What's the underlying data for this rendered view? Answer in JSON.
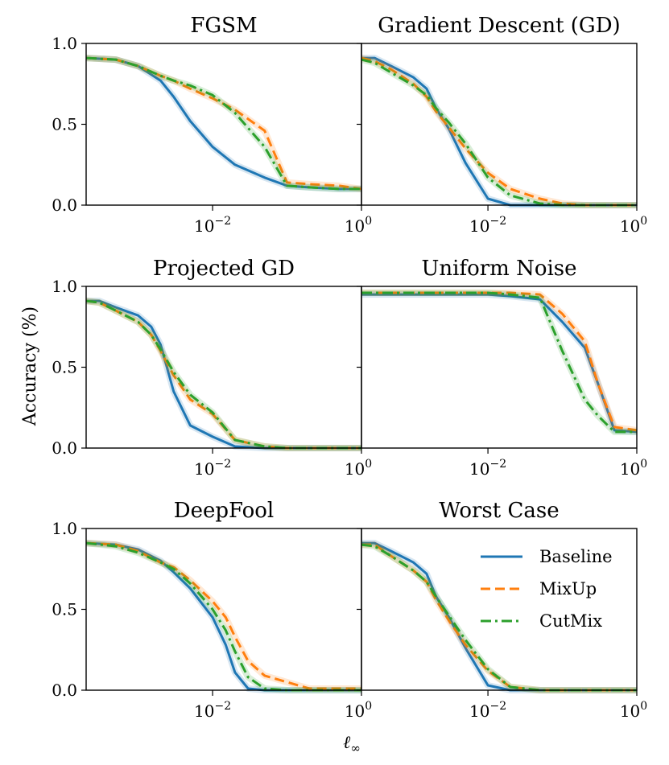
{
  "figure": {
    "ylabel": "Accuracy (%)",
    "xlabel_symbol": "ℓ",
    "xlabel_subscript": "∞"
  },
  "legend": {
    "placement": "bottom-right panel, top-right",
    "entries": [
      {
        "name": "Baseline",
        "color": "#1f77b4",
        "style": "solid"
      },
      {
        "name": "MixUp",
        "color": "#ff7f0e",
        "style": "dashed"
      },
      {
        "name": "CutMix",
        "color": "#2ca02c",
        "style": "dashdot"
      }
    ]
  },
  "axis": {
    "x_scale": "log",
    "x_tick_left": {
      "base": "10",
      "exp": "−2"
    },
    "x_tick_right": {
      "base": "10",
      "exp": "0"
    },
    "y_ticks": [
      "0.0",
      "0.5",
      "1.0"
    ],
    "ylim": [
      0,
      1
    ],
    "xlim": [
      0.0002,
      1
    ]
  },
  "chart_data": [
    {
      "type": "line",
      "title": "FGSM",
      "x": [
        0.0002,
        0.0005,
        0.001,
        0.002,
        0.003,
        0.005,
        0.01,
        0.02,
        0.05,
        0.1,
        0.2,
        0.5,
        1.0
      ],
      "series": [
        {
          "name": "Baseline",
          "values": [
            0.91,
            0.9,
            0.86,
            0.77,
            0.67,
            0.52,
            0.36,
            0.25,
            0.17,
            0.12,
            0.11,
            0.1,
            0.1
          ]
        },
        {
          "name": "MixUp",
          "values": [
            0.91,
            0.9,
            0.86,
            0.8,
            0.77,
            0.72,
            0.66,
            0.59,
            0.46,
            0.14,
            0.13,
            0.12,
            0.1
          ]
        },
        {
          "name": "CutMix",
          "values": [
            0.91,
            0.9,
            0.86,
            0.8,
            0.77,
            0.74,
            0.68,
            0.57,
            0.36,
            0.12,
            0.11,
            0.1,
            0.1
          ]
        }
      ]
    },
    {
      "type": "line",
      "title": "Gradient Descent (GD)",
      "x": [
        0.0002,
        0.0003,
        0.0005,
        0.001,
        0.0015,
        0.002,
        0.003,
        0.005,
        0.01,
        0.02,
        0.05,
        0.1,
        0.2,
        0.5,
        1.0
      ],
      "series": [
        {
          "name": "Baseline",
          "values": [
            0.91,
            0.91,
            0.86,
            0.79,
            0.72,
            0.6,
            0.47,
            0.26,
            0.04,
            0.0,
            0.0,
            0.0,
            0.0,
            0.0,
            0.0
          ]
        },
        {
          "name": "MixUp",
          "values": [
            0.91,
            0.89,
            0.84,
            0.75,
            0.67,
            0.58,
            0.48,
            0.35,
            0.2,
            0.1,
            0.04,
            0.01,
            0.0,
            0.0,
            0.0
          ]
        },
        {
          "name": "CutMix",
          "values": [
            0.9,
            0.88,
            0.82,
            0.74,
            0.68,
            0.6,
            0.51,
            0.38,
            0.17,
            0.06,
            0.01,
            0.0,
            0.0,
            0.0,
            0.0
          ]
        }
      ]
    },
    {
      "type": "line",
      "title": "Projected GD",
      "x": [
        0.0002,
        0.0003,
        0.0005,
        0.001,
        0.0015,
        0.002,
        0.003,
        0.005,
        0.01,
        0.02,
        0.05,
        0.1,
        0.2,
        0.5,
        1.0
      ],
      "series": [
        {
          "name": "Baseline",
          "values": [
            0.91,
            0.91,
            0.87,
            0.82,
            0.75,
            0.64,
            0.35,
            0.14,
            0.07,
            0.01,
            0.0,
            0.0,
            0.0,
            0.0,
            0.0
          ]
        },
        {
          "name": "MixUp",
          "values": [
            0.91,
            0.9,
            0.85,
            0.78,
            0.7,
            0.6,
            0.45,
            0.3,
            0.21,
            0.05,
            0.01,
            0.0,
            0.0,
            0.0,
            0.0
          ]
        },
        {
          "name": "CutMix",
          "values": [
            0.91,
            0.9,
            0.85,
            0.78,
            0.7,
            0.61,
            0.47,
            0.33,
            0.22,
            0.05,
            0.01,
            0.0,
            0.0,
            0.0,
            0.0
          ]
        }
      ]
    },
    {
      "type": "line",
      "title": "Uniform Noise",
      "x": [
        0.0002,
        0.0005,
        0.001,
        0.002,
        0.005,
        0.01,
        0.02,
        0.05,
        0.1,
        0.2,
        0.3,
        0.5,
        1.0
      ],
      "series": [
        {
          "name": "Baseline",
          "values": [
            0.95,
            0.95,
            0.95,
            0.95,
            0.95,
            0.95,
            0.94,
            0.92,
            0.78,
            0.62,
            0.4,
            0.11,
            0.1
          ]
        },
        {
          "name": "MixUp",
          "values": [
            0.96,
            0.96,
            0.96,
            0.96,
            0.96,
            0.96,
            0.96,
            0.95,
            0.83,
            0.66,
            0.4,
            0.13,
            0.11
          ]
        },
        {
          "name": "CutMix",
          "values": [
            0.96,
            0.96,
            0.96,
            0.96,
            0.96,
            0.96,
            0.95,
            0.93,
            0.6,
            0.3,
            0.2,
            0.1,
            0.1
          ]
        }
      ]
    },
    {
      "type": "line",
      "title": "DeepFool",
      "x": [
        0.0002,
        0.0005,
        0.001,
        0.002,
        0.003,
        0.005,
        0.01,
        0.015,
        0.02,
        0.03,
        0.05,
        0.1,
        0.2,
        0.5,
        1.0
      ],
      "series": [
        {
          "name": "Baseline",
          "values": [
            0.91,
            0.9,
            0.87,
            0.8,
            0.73,
            0.63,
            0.45,
            0.28,
            0.11,
            0.01,
            0.0,
            0.0,
            0.0,
            0.0,
            0.0
          ]
        },
        {
          "name": "MixUp",
          "values": [
            0.91,
            0.9,
            0.86,
            0.79,
            0.76,
            0.68,
            0.55,
            0.45,
            0.33,
            0.18,
            0.09,
            0.05,
            0.01,
            0.01,
            0.01
          ]
        },
        {
          "name": "CutMix",
          "values": [
            0.91,
            0.89,
            0.85,
            0.79,
            0.75,
            0.66,
            0.5,
            0.37,
            0.24,
            0.08,
            0.01,
            0.0,
            0.0,
            0.0,
            0.0
          ]
        }
      ]
    },
    {
      "type": "line",
      "title": "Worst Case",
      "x": [
        0.0002,
        0.0003,
        0.0005,
        0.001,
        0.0015,
        0.002,
        0.003,
        0.005,
        0.01,
        0.02,
        0.05,
        0.1,
        0.2,
        0.5,
        1.0
      ],
      "series": [
        {
          "name": "Baseline",
          "values": [
            0.91,
            0.91,
            0.86,
            0.79,
            0.72,
            0.58,
            0.45,
            0.26,
            0.03,
            0.0,
            0.0,
            0.0,
            0.0,
            0.0,
            0.0
          ]
        },
        {
          "name": "MixUp",
          "values": [
            0.9,
            0.9,
            0.83,
            0.74,
            0.67,
            0.56,
            0.43,
            0.28,
            0.12,
            0.02,
            0.0,
            0.0,
            0.0,
            0.0,
            0.0
          ]
        },
        {
          "name": "CutMix",
          "values": [
            0.9,
            0.89,
            0.83,
            0.74,
            0.67,
            0.58,
            0.46,
            0.31,
            0.13,
            0.02,
            0.0,
            0.0,
            0.0,
            0.0,
            0.0
          ]
        }
      ]
    }
  ]
}
